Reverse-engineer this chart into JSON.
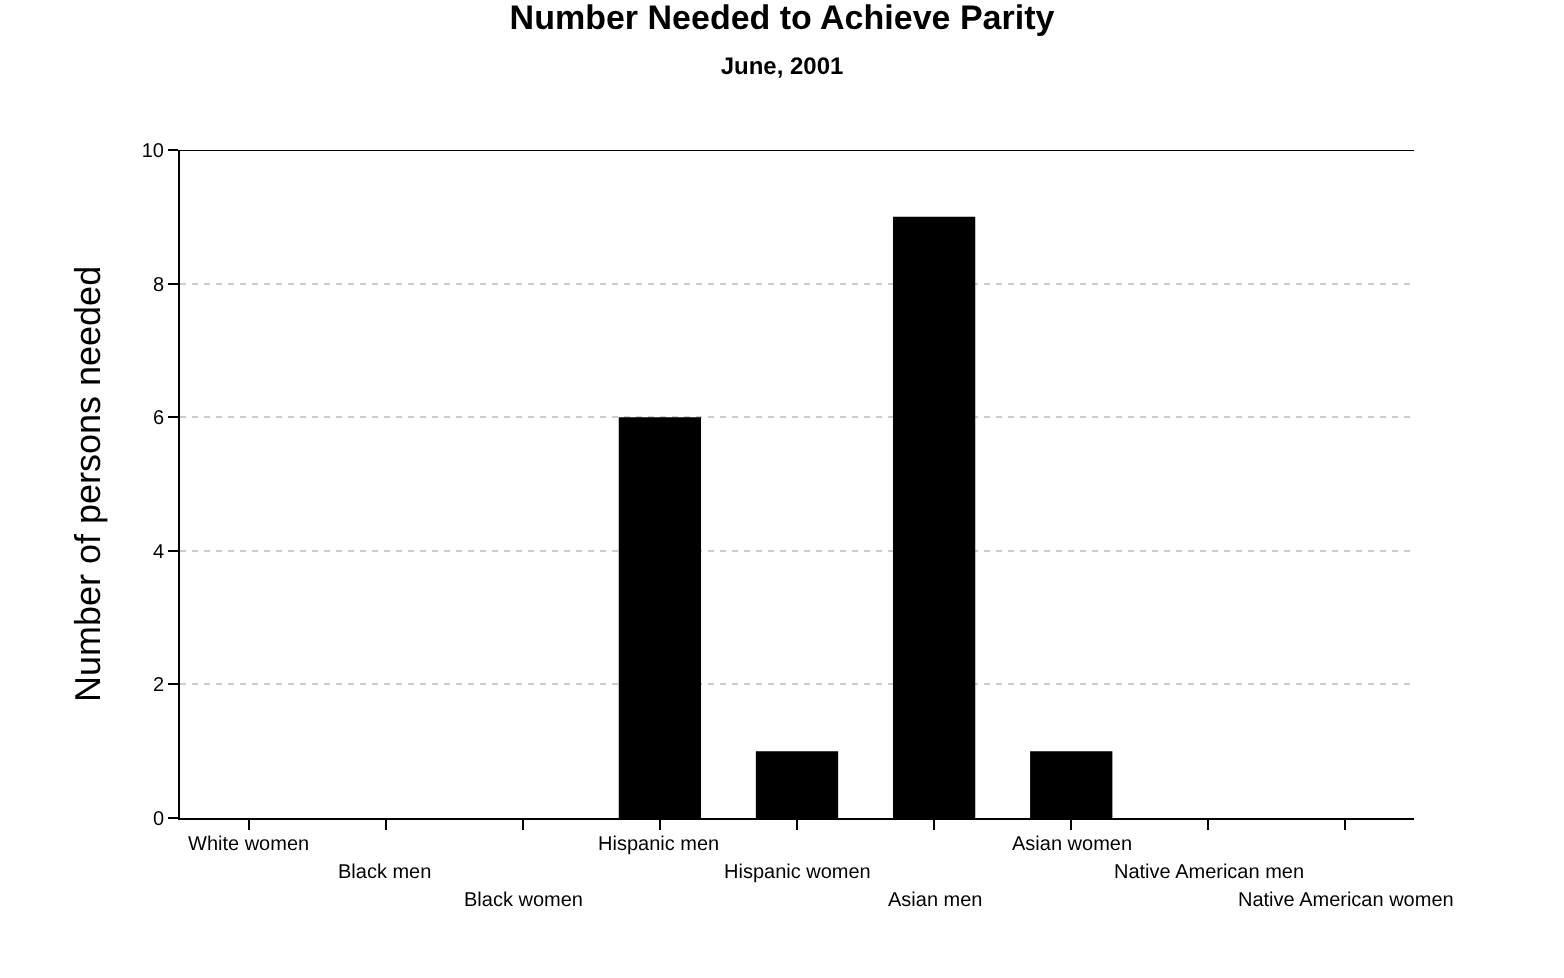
{
  "chart_data": {
    "type": "bar",
    "title": "Number Needed to Achieve Parity",
    "subtitle": "June, 2001",
    "ylabel": "Number of persons needed",
    "categories": [
      "White women",
      "Black men",
      "Black women",
      "Hispanic men",
      "Hispanic women",
      "Asian men",
      "Asian women",
      "Native American men",
      "Native American women"
    ],
    "values": [
      0,
      0,
      0,
      6,
      1,
      9,
      1,
      0,
      0
    ],
    "color": "#000000",
    "ylim": [
      0,
      10
    ],
    "yticks": [
      0,
      2,
      4,
      6,
      8,
      10
    ],
    "grid": "y"
  }
}
